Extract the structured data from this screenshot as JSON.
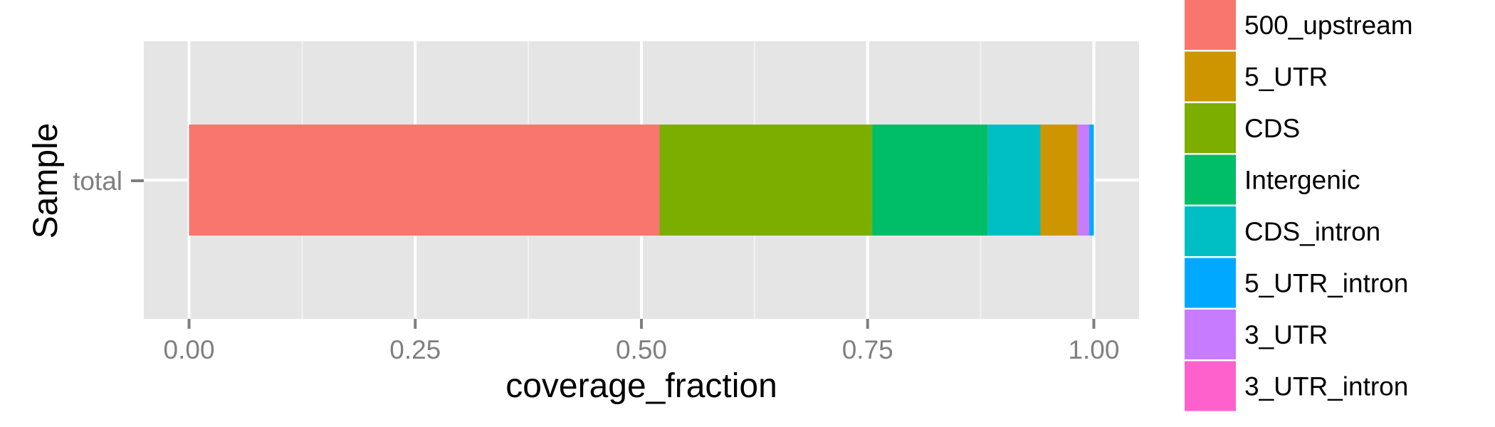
{
  "chart_data": {
    "type": "bar",
    "orientation": "horizontal",
    "stacked": true,
    "categories": [
      "total"
    ],
    "xlabel": "coverage_fraction",
    "ylabel": "Sample",
    "xlim": [
      -0.05,
      1.05
    ],
    "xticks": [
      0.0,
      0.25,
      0.5,
      0.75,
      1.0
    ],
    "xtick_labels": [
      "0.00",
      "0.25",
      "0.50",
      "0.75",
      "1.00"
    ],
    "grid": true,
    "legend_position": "right",
    "series": [
      {
        "name": "500_upstream",
        "color": "#F8766D",
        "values": [
          0.52
        ]
      },
      {
        "name": "CDS",
        "color": "#7CAE00",
        "values": [
          0.235
        ]
      },
      {
        "name": "Intergenic",
        "color": "#00BE67",
        "values": [
          0.128
        ]
      },
      {
        "name": "CDS_intron",
        "color": "#00BFC4",
        "values": [
          0.058
        ]
      },
      {
        "name": "5_UTR",
        "color": "#CD9600",
        "values": [
          0.041
        ]
      },
      {
        "name": "3_UTR",
        "color": "#C77CFF",
        "values": [
          0.013
        ]
      },
      {
        "name": "5_UTR_intron",
        "color": "#00A9FF",
        "values": [
          0.005
        ]
      },
      {
        "name": "3_UTR_intron",
        "color": "#FF61CC",
        "values": [
          0.0
        ]
      }
    ],
    "legend": [
      {
        "name": "500_upstream",
        "color": "#F8766D"
      },
      {
        "name": "5_UTR",
        "color": "#CD9600"
      },
      {
        "name": "CDS",
        "color": "#7CAE00"
      },
      {
        "name": "Intergenic",
        "color": "#00BE67"
      },
      {
        "name": "CDS_intron",
        "color": "#00BFC4"
      },
      {
        "name": "5_UTR_intron",
        "color": "#00A9FF"
      },
      {
        "name": "3_UTR",
        "color": "#C77CFF"
      },
      {
        "name": "3_UTR_intron",
        "color": "#FF61CC"
      }
    ]
  }
}
